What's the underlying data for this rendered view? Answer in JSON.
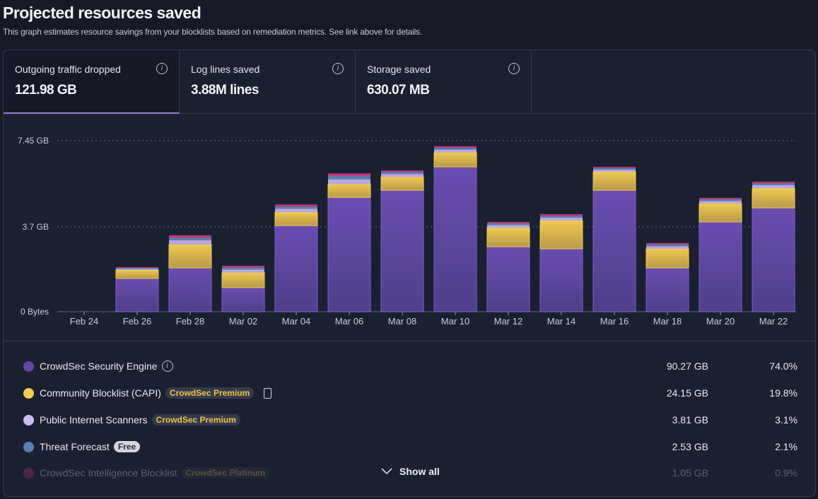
{
  "header": {
    "title": "Projected resources saved",
    "subtitle": "This graph estimates resource savings from your blocklists based on remediation metrics. See link above for details."
  },
  "tabs": [
    {
      "label": "Outgoing traffic dropped",
      "value": "121.98 GB",
      "active": true
    },
    {
      "label": "Log lines saved",
      "value": "3.88M lines",
      "active": false
    },
    {
      "label": "Storage saved",
      "value": "630.07 MB",
      "active": false
    }
  ],
  "chart_data": {
    "type": "bar",
    "stacked": true,
    "categories": [
      "Feb 24",
      "Feb 26",
      "Feb 28",
      "Mar 02",
      "Mar 04",
      "Mar 06",
      "Mar 08",
      "Mar 10",
      "Mar 12",
      "Mar 14",
      "Mar 16",
      "Mar 18",
      "Mar 20",
      "Mar 22"
    ],
    "yticks": [
      {
        "value": 0,
        "label": "0 Bytes"
      },
      {
        "value": 3.7,
        "label": "3.7 GB"
      },
      {
        "value": 7.45,
        "label": "7.45 GB"
      }
    ],
    "ylim": [
      0,
      7.45
    ],
    "grid": true,
    "series": [
      {
        "name": "CrowdSec Security Engine",
        "color": "#6547a8",
        "values": [
          0,
          1.45,
          1.91,
          1.05,
          3.75,
          4.98,
          5.29,
          6.31,
          2.83,
          2.74,
          5.29,
          1.91,
          3.91,
          4.52
        ]
      },
      {
        "name": "Community Blocklist (CAPI)",
        "color": "#e8c14a",
        "values": [
          0,
          0.37,
          1.02,
          0.65,
          0.58,
          0.58,
          0.58,
          0.62,
          0.83,
          1.23,
          0.8,
          0.83,
          0.8,
          0.86
        ]
      },
      {
        "name": "Public Internet Scanners",
        "color": "#b9a8e0",
        "values": [
          0,
          0.05,
          0.18,
          0.14,
          0.15,
          0.21,
          0.13,
          0.13,
          0.11,
          0.13,
          0.1,
          0.11,
          0.11,
          0.13
        ]
      },
      {
        "name": "Threat Forecast",
        "color": "#5b7fae",
        "values": [
          0,
          0.04,
          0.12,
          0.09,
          0.1,
          0.14,
          0.08,
          0.08,
          0.08,
          0.08,
          0.07,
          0.08,
          0.08,
          0.08
        ]
      },
      {
        "name": "CrowdSec Intelligence Blocklist",
        "color": "#c2357a",
        "values": [
          0,
          0.03,
          0.1,
          0.07,
          0.09,
          0.11,
          0.07,
          0.07,
          0.06,
          0.07,
          0.05,
          0.06,
          0.06,
          0.07
        ]
      }
    ]
  },
  "legend": [
    {
      "name": "CrowdSec Security Engine",
      "color": "#6547a8",
      "badge": "",
      "info": true,
      "value": "90.27 GB",
      "percent": "74.0%"
    },
    {
      "name": "Community Blocklist (CAPI)",
      "color": "#f2cd4f",
      "badge": "CrowdSec Premium",
      "doc": true,
      "value": "24.15 GB",
      "percent": "19.8%"
    },
    {
      "name": "Public Internet Scanners",
      "color": "#cbbdf0",
      "badge": "CrowdSec Premium",
      "value": "3.81 GB",
      "percent": "3.1%"
    },
    {
      "name": "Threat Forecast",
      "color": "#5b7fae",
      "badge": "Free",
      "value": "2.53 GB",
      "percent": "2.1%"
    },
    {
      "name": "CrowdSec Intelligence Blocklist",
      "color": "#c2357a",
      "badge": "CrowdSec Platinum",
      "value": "1.05 GB",
      "percent": "0.9%"
    }
  ],
  "show_all_label": "Show all"
}
